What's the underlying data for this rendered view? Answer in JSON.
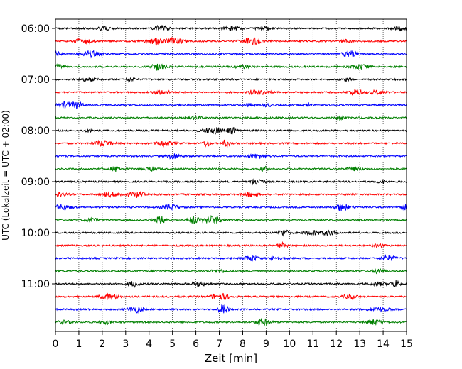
{
  "chart_data": {
    "type": "line",
    "subtype": "helicorder",
    "xlabel": "Zeit  [min]",
    "ylabel": "UTC (Lokalzeit = UTC + 02:00)",
    "xlim": [
      0,
      15
    ],
    "x_ticks": [
      0,
      1,
      2,
      3,
      4,
      5,
      6,
      7,
      8,
      9,
      10,
      11,
      12,
      13,
      14,
      15
    ],
    "x_grid": "dotted vertical lines at each minute",
    "y_tick_labels": [
      "06:00",
      "07:00",
      "08:00",
      "09:00",
      "10:00",
      "11:00"
    ],
    "trace_count": 24,
    "trace_minutes": 15,
    "trace_colors": [
      "#000000",
      "#ff0000",
      "#0000ff",
      "#008000"
    ],
    "legend": "none"
  }
}
